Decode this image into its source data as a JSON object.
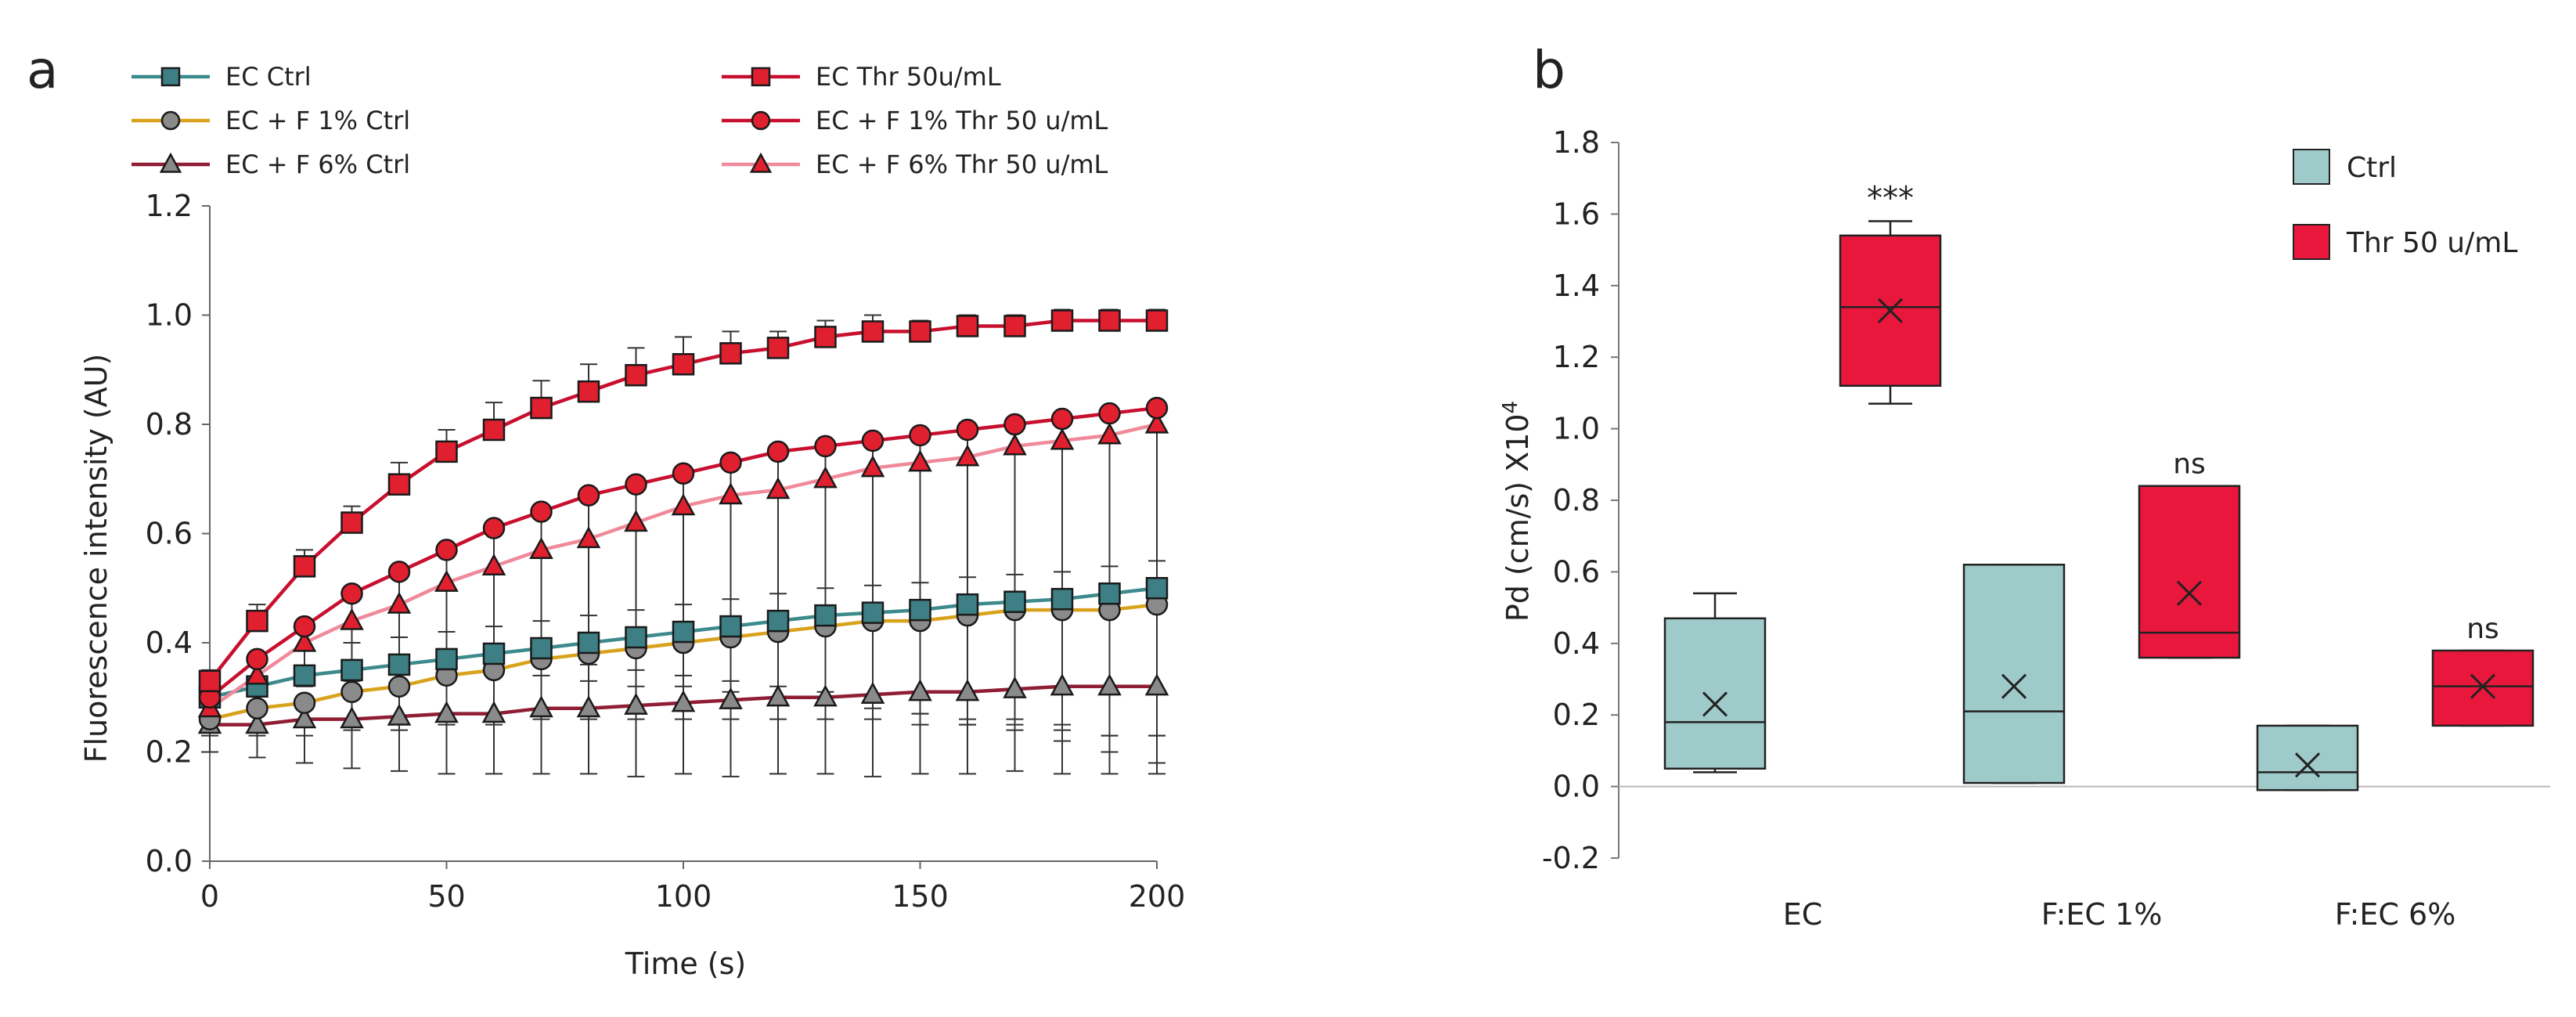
{
  "panels": {
    "a": {
      "letter": "a",
      "chart_data": {
        "type": "line",
        "xlabel": "Time (s)",
        "ylabel": "Fluorescence intensity (AU)",
        "xlim": [
          0,
          200
        ],
        "ylim": [
          0.0,
          1.2
        ],
        "xticks": [
          0,
          50,
          100,
          150,
          200
        ],
        "yticks": [
          0.0,
          0.2,
          0.4,
          0.6,
          0.8,
          1.0,
          1.2
        ],
        "ytick_labels": [
          "0.0",
          "0.2",
          "0.4",
          "0.6",
          "0.8",
          "1.0",
          "1.2"
        ],
        "x": [
          0,
          10,
          20,
          30,
          40,
          50,
          60,
          70,
          80,
          90,
          100,
          110,
          120,
          130,
          140,
          150,
          160,
          170,
          180,
          190,
          200
        ],
        "series": [
          {
            "name": "EC Ctrl",
            "marker": "square",
            "line_color": "#3d8a8c",
            "marker_color": "#3d7f84",
            "error_dir": "up",
            "values": [
              0.3,
              0.32,
              0.34,
              0.35,
              0.36,
              0.37,
              0.38,
              0.39,
              0.4,
              0.41,
              0.42,
              0.43,
              0.44,
              0.45,
              0.455,
              0.46,
              0.47,
              0.475,
              0.48,
              0.49,
              0.5
            ],
            "errors": [
              0.03,
              0.04,
              0.05,
              0.05,
              0.05,
              0.05,
              0.05,
              0.05,
              0.05,
              0.05,
              0.05,
              0.05,
              0.05,
              0.05,
              0.05,
              0.05,
              0.05,
              0.05,
              0.05,
              0.05,
              0.05
            ]
          },
          {
            "name": "EC + F 1% Ctrl",
            "marker": "circle",
            "line_color": "#d9a21c",
            "marker_color": "#8a8a8a",
            "error_dir": "down",
            "values": [
              0.26,
              0.28,
              0.29,
              0.31,
              0.32,
              0.34,
              0.35,
              0.37,
              0.38,
              0.39,
              0.4,
              0.41,
              0.42,
              0.43,
              0.44,
              0.44,
              0.45,
              0.46,
              0.46,
              0.46,
              0.47
            ],
            "errors": [
              0.03,
              0.05,
              0.06,
              0.07,
              0.08,
              0.09,
              0.1,
              0.11,
              0.12,
              0.13,
              0.14,
              0.15,
              0.16,
              0.17,
              0.18,
              0.19,
              0.2,
              0.21,
              0.22,
              0.23,
              0.24
            ]
          },
          {
            "name": "EC + F 6% Ctrl",
            "marker": "triangle",
            "line_color": "#8f1d33",
            "marker_color": "#8a8a8a",
            "error_dir": "down",
            "values": [
              0.25,
              0.25,
              0.26,
              0.26,
              0.265,
              0.27,
              0.27,
              0.28,
              0.28,
              0.285,
              0.29,
              0.295,
              0.3,
              0.3,
              0.305,
              0.31,
              0.31,
              0.315,
              0.32,
              0.32,
              0.32
            ],
            "errors": [
              0.05,
              0.06,
              0.08,
              0.09,
              0.1,
              0.11,
              0.11,
              0.12,
              0.12,
              0.13,
              0.13,
              0.14,
              0.14,
              0.14,
              0.15,
              0.15,
              0.15,
              0.15,
              0.16,
              0.16,
              0.16
            ]
          },
          {
            "name": "EC Thr 50u/mL",
            "marker": "square",
            "line_color": "#c8102e",
            "marker_color": "#e0202f",
            "error_dir": "up",
            "values": [
              0.33,
              0.44,
              0.54,
              0.62,
              0.69,
              0.75,
              0.79,
              0.83,
              0.86,
              0.89,
              0.91,
              0.93,
              0.94,
              0.96,
              0.97,
              0.97,
              0.98,
              0.98,
              0.99,
              0.99,
              0.99
            ],
            "errors": [
              0.02,
              0.03,
              0.03,
              0.03,
              0.04,
              0.04,
              0.05,
              0.05,
              0.05,
              0.05,
              0.05,
              0.04,
              0.03,
              0.03,
              0.03,
              0.02,
              0.02,
              0.02,
              0.02,
              0.02,
              0.02
            ]
          },
          {
            "name": "EC + F 1% Thr 50 u/mL",
            "marker": "circle",
            "line_color": "#c8102e",
            "marker_color": "#e0202f",
            "error_dir": "down",
            "values": [
              0.3,
              0.37,
              0.43,
              0.49,
              0.53,
              0.57,
              0.61,
              0.64,
              0.67,
              0.69,
              0.71,
              0.73,
              0.75,
              0.76,
              0.77,
              0.78,
              0.79,
              0.8,
              0.81,
              0.82,
              0.83
            ],
            "errors": [
              0.03,
              0.06,
              0.09,
              0.13,
              0.16,
              0.2,
              0.24,
              0.28,
              0.31,
              0.34,
              0.37,
              0.4,
              0.43,
              0.45,
              0.48,
              0.51,
              0.54,
              0.56,
              0.59,
              0.62,
              0.65
            ]
          },
          {
            "name": "EC + F 6% Thr 50 u/mL",
            "marker": "triangle",
            "line_color": "#f08a9a",
            "marker_color": "#e0202f",
            "error_dir": "down",
            "values": [
              0.28,
              0.34,
              0.4,
              0.44,
              0.47,
              0.51,
              0.54,
              0.57,
              0.59,
              0.62,
              0.65,
              0.67,
              0.68,
              0.7,
              0.72,
              0.73,
              0.74,
              0.76,
              0.77,
              0.78,
              0.8
            ],
            "errors": [
              0.03,
              0.05,
              0.08,
              0.11,
              0.14,
              0.17,
              0.2,
              0.23,
              0.26,
              0.3,
              0.33,
              0.36,
              0.38,
              0.41,
              0.44,
              0.46,
              0.48,
              0.5,
              0.52,
              0.55,
              0.57
            ]
          }
        ],
        "legend_position": "top"
      }
    },
    "b": {
      "letter": "b",
      "chart_data": {
        "type": "box",
        "ylabel_prefix": "Pd (cm/s) X10",
        "ylabel_sup": "4",
        "ylim": [
          -0.2,
          1.8
        ],
        "yticks": [
          -0.2,
          0.0,
          0.2,
          0.4,
          0.6,
          0.8,
          1.0,
          1.2,
          1.4,
          1.6,
          1.8
        ],
        "ytick_labels": [
          "-0.2",
          "0.0",
          "0.2",
          "0.4",
          "0.6",
          "0.8",
          "1.0",
          "1.2",
          "1.4",
          "1.6",
          "1.8"
        ],
        "categories": [
          "EC",
          "F:EC 1%",
          "F:EC 6%"
        ],
        "series": [
          {
            "name": "Ctrl",
            "color": "#9fcaca",
            "boxes": [
              {
                "min": 0.04,
                "q1": 0.05,
                "median": 0.18,
                "q3": 0.47,
                "max": 0.54,
                "mean": 0.23
              },
              {
                "min": 0.01,
                "q1": 0.01,
                "median": 0.21,
                "q3": 0.62,
                "max": 0.62,
                "mean": 0.28
              },
              {
                "min": -0.01,
                "q1": -0.01,
                "median": 0.04,
                "q3": 0.17,
                "max": 0.17,
                "mean": 0.06
              }
            ]
          },
          {
            "name": "Thr 50 u/mL",
            "color": "#e8173b",
            "boxes": [
              {
                "min": 1.07,
                "q1": 1.12,
                "median": 1.34,
                "q3": 1.54,
                "max": 1.58,
                "mean": 1.33
              },
              {
                "min": 0.36,
                "q1": 0.36,
                "median": 0.43,
                "q3": 0.84,
                "max": 0.84,
                "mean": 0.54
              },
              {
                "min": 0.17,
                "q1": 0.17,
                "median": 0.28,
                "q3": 0.38,
                "max": 0.38,
                "mean": 0.28
              }
            ]
          }
        ],
        "annotations": [
          {
            "text": "***",
            "category": "EC",
            "series": "Thr 50 u/mL"
          },
          {
            "text": "ns",
            "category": "F:EC 1%",
            "series": "Thr 50 u/mL"
          },
          {
            "text": "ns",
            "category": "F:EC 6%",
            "series": "Thr 50 u/mL"
          }
        ],
        "legend_position": "top-right"
      }
    }
  }
}
